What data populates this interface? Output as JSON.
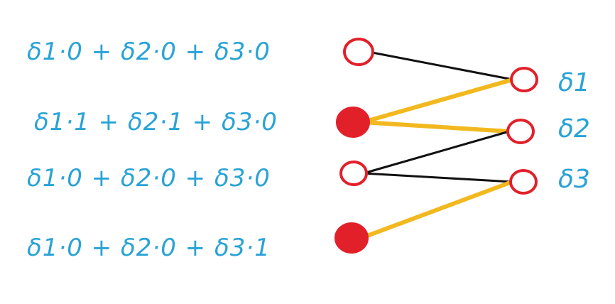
{
  "equations": [
    "δ1·0 + δ2·0 + δ3·0",
    "δ1·1 + δ2·1 + δ3·0",
    "δ1·0 + δ2·0 + δ3·0",
    "δ1·0 + δ2·0 + δ3·1"
  ],
  "output_labels": [
    "δ1",
    "δ2",
    "δ3"
  ],
  "colors": {
    "text": "#29a3d6",
    "node_outline": "#e2202a",
    "node_fill_active": "#e2202a",
    "edge_inactive": "#111111",
    "edge_active": "#f2b81f"
  },
  "input_nodes": [
    {
      "active": false
    },
    {
      "active": true
    },
    {
      "active": false
    },
    {
      "active": true
    }
  ],
  "edges": [
    {
      "from": 0,
      "to": 0,
      "active": false
    },
    {
      "from": 1,
      "to": 0,
      "active": true
    },
    {
      "from": 1,
      "to": 1,
      "active": true
    },
    {
      "from": 2,
      "to": 1,
      "active": false
    },
    {
      "from": 2,
      "to": 2,
      "active": false
    },
    {
      "from": 3,
      "to": 2,
      "active": true
    }
  ]
}
